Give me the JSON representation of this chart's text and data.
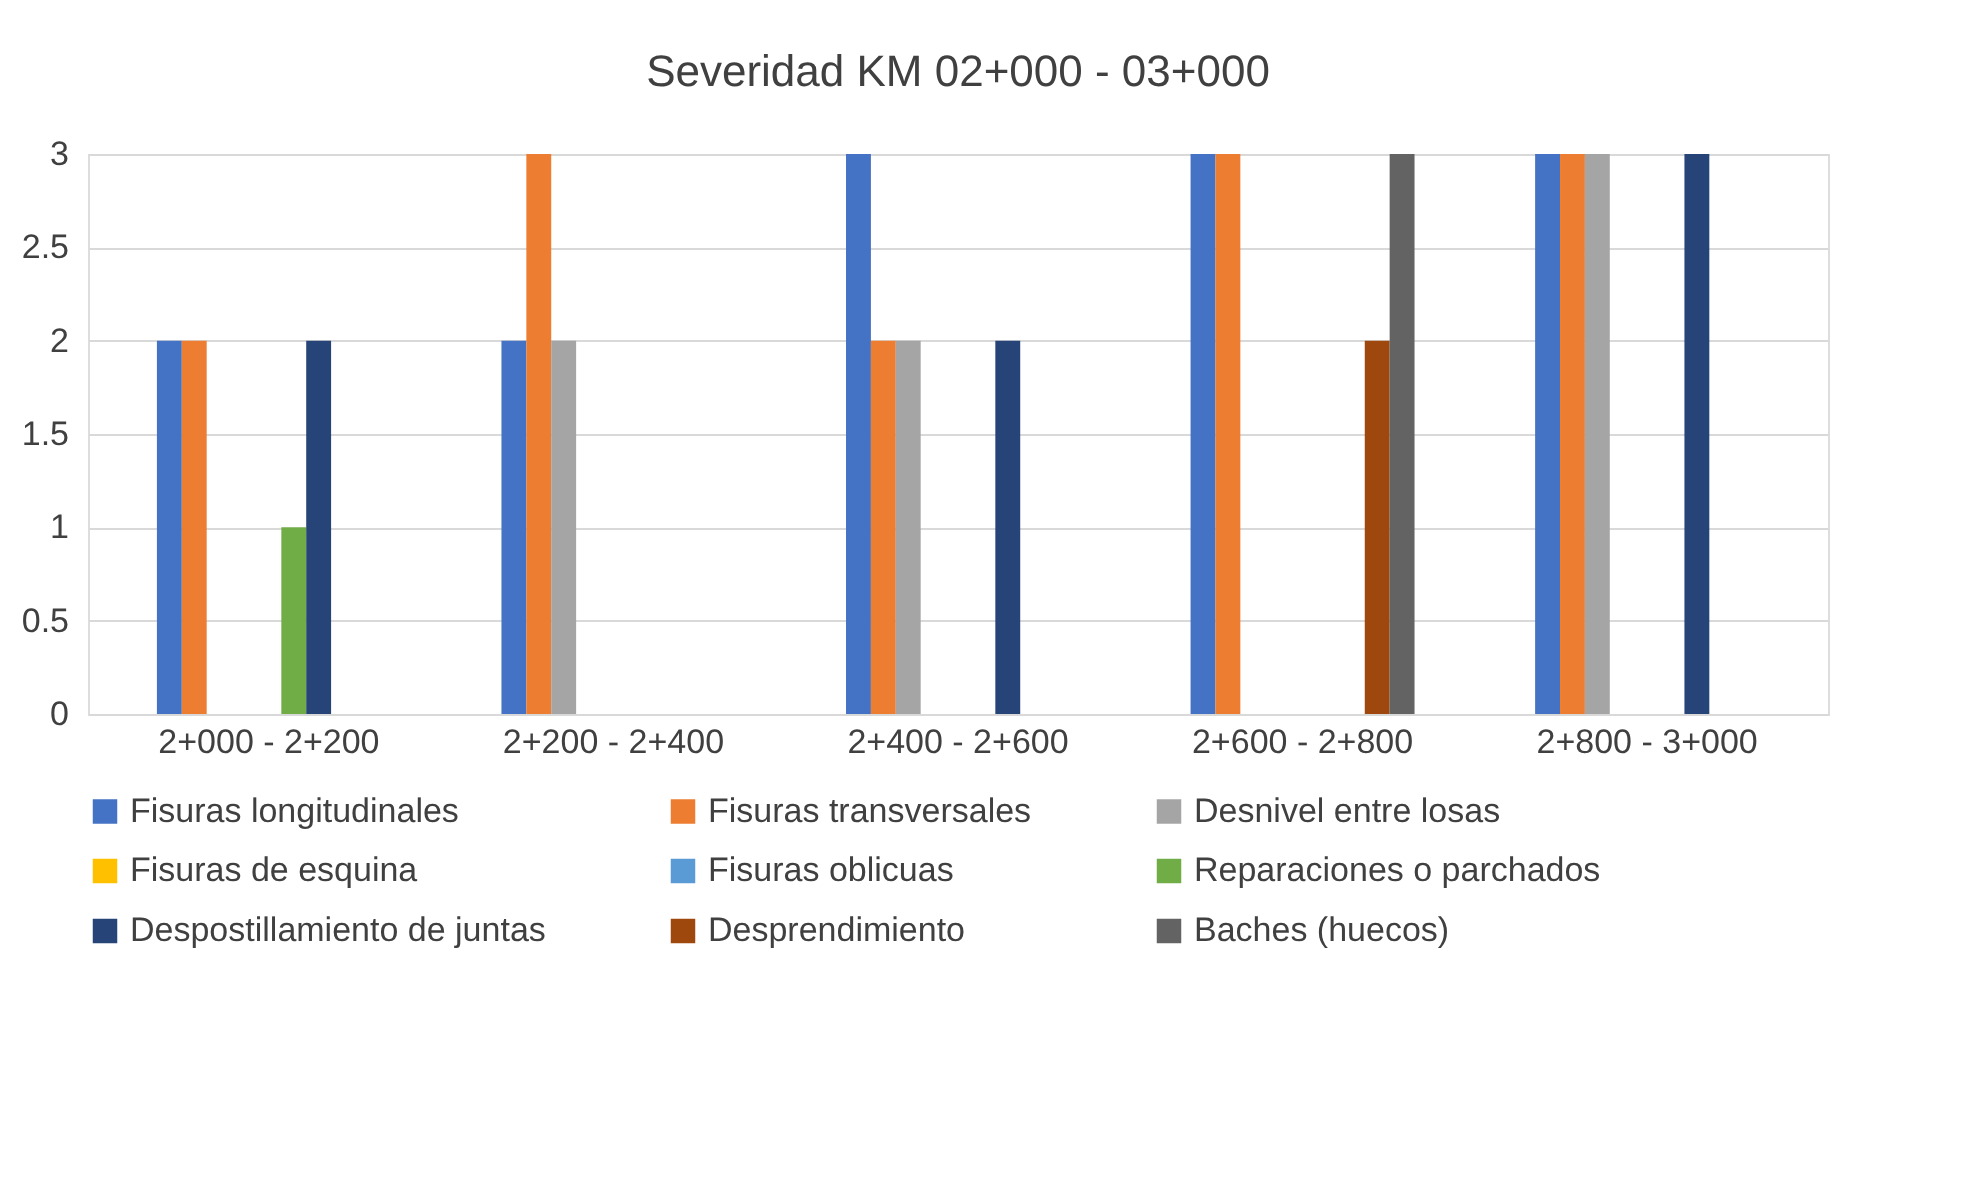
{
  "chart_data": {
    "type": "bar",
    "title": "Severidad KM 02+000 - 03+000",
    "categories": [
      "2+000 - 2+200",
      "2+200 - 2+400",
      "2+400 - 2+600",
      "2+600 - 2+800",
      "2+800 - 3+000"
    ],
    "series": [
      {
        "name": "Fisuras longitudinales",
        "color": "#4472c4",
        "values": [
          2,
          2,
          3,
          3,
          3
        ]
      },
      {
        "name": "Fisuras transversales",
        "color": "#ed7d31",
        "values": [
          2,
          3,
          2,
          3,
          3
        ]
      },
      {
        "name": "Desnivel entre losas",
        "color": "#a5a5a5",
        "values": [
          null,
          2,
          2,
          null,
          3
        ]
      },
      {
        "name": "Fisuras de esquina",
        "color": "#ffc000",
        "values": [
          null,
          null,
          null,
          null,
          null
        ]
      },
      {
        "name": "Fisuras oblicuas",
        "color": "#5b9bd5",
        "values": [
          null,
          null,
          null,
          null,
          null
        ]
      },
      {
        "name": "Reparaciones o parchados",
        "color": "#70ad47",
        "values": [
          1,
          null,
          null,
          null,
          null
        ]
      },
      {
        "name": "Despostillamiento de juntas",
        "color": "#264478",
        "values": [
          2,
          null,
          2,
          null,
          3
        ]
      },
      {
        "name": "Desprendimiento",
        "color": "#9e480e",
        "values": [
          null,
          null,
          null,
          2,
          null
        ]
      },
      {
        "name": "Baches (huecos)",
        "color": "#636363",
        "values": [
          null,
          null,
          null,
          3,
          null
        ]
      }
    ],
    "ylim": [
      0,
      3
    ],
    "yticks": [
      0,
      0.5,
      1,
      1.5,
      2,
      2.5,
      3
    ],
    "grid": "y",
    "legend": "bottom"
  }
}
